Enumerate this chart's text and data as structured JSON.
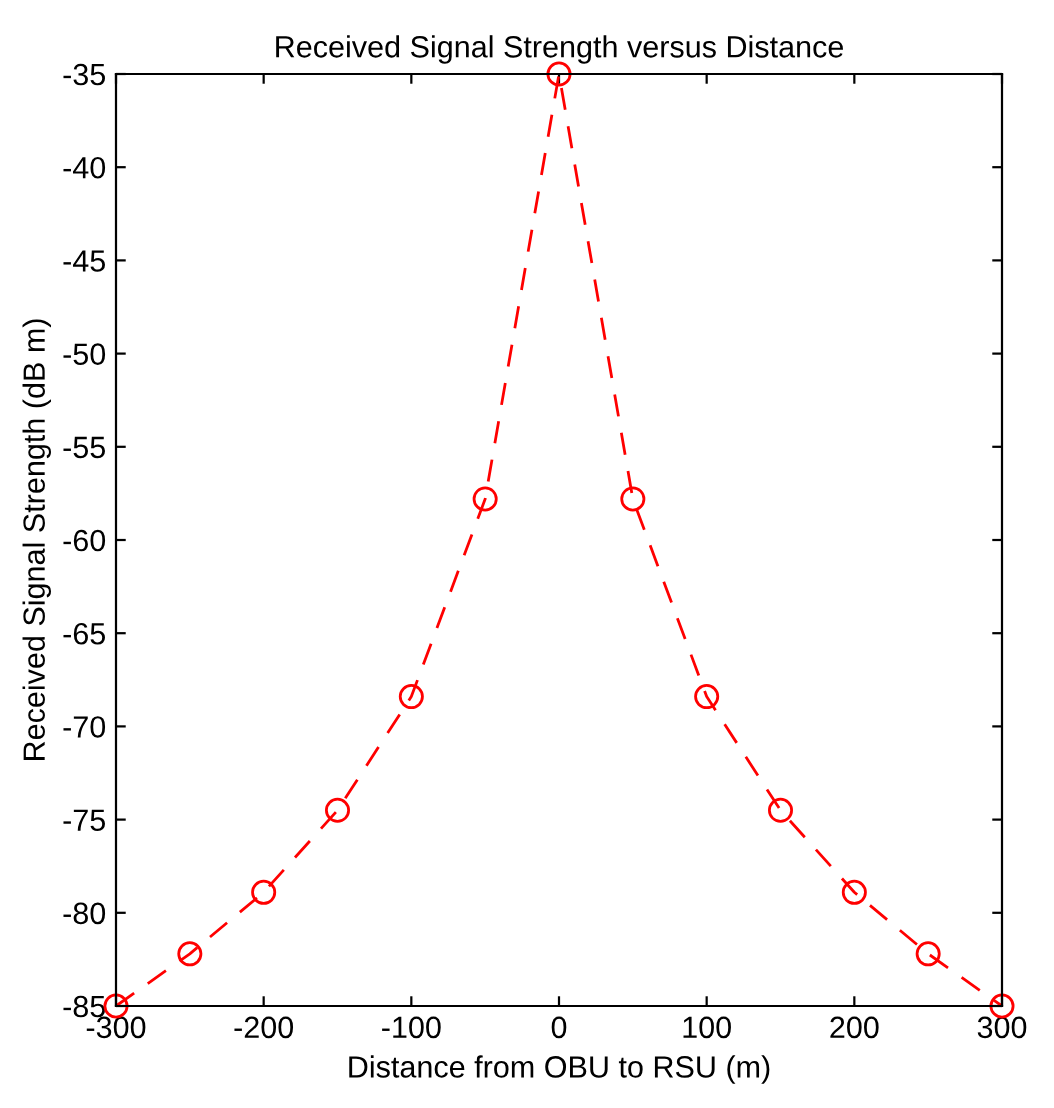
{
  "chart_data": {
    "type": "line",
    "title": "Received Signal Strength versus Distance",
    "xlabel": "Distance from OBU to RSU (m)",
    "ylabel": "Received Signal Strength (dB m)",
    "x": [
      -300,
      -250,
      -200,
      -150,
      -100,
      -50,
      0,
      50,
      100,
      150,
      200,
      250,
      300
    ],
    "series": [
      {
        "color": "#ff0000",
        "values": [
          -85,
          -82.2,
          -78.9,
          -74.5,
          -68.4,
          -57.8,
          -35,
          -57.8,
          -68.4,
          -74.5,
          -78.9,
          -82.2,
          -85
        ]
      }
    ],
    "xlim": [
      -300,
      300
    ],
    "ylim": [
      -85,
      -35
    ],
    "xticks": [
      -300,
      -200,
      -100,
      0,
      100,
      200,
      300
    ],
    "yticks": [
      -85,
      -80,
      -75,
      -70,
      -65,
      -60,
      -55,
      -50,
      -45,
      -40,
      -35
    ],
    "grid": false,
    "legend": false,
    "marker": "circle",
    "line_style": "dashed"
  }
}
